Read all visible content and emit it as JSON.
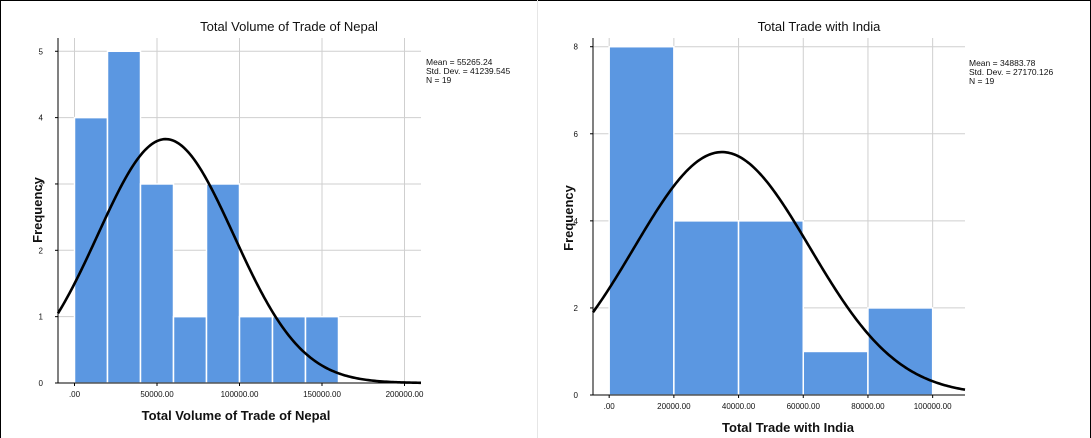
{
  "chart_data": [
    {
      "type": "bar",
      "subtype": "histogram",
      "title": "Total Volume of Trade of Nepal",
      "xlabel": "Total Volume of Trade of Nepal",
      "ylabel": "Frequency",
      "bin_width": 20000,
      "bins": [
        0,
        20000,
        40000,
        60000,
        80000,
        100000,
        120000,
        140000
      ],
      "values": [
        4,
        5,
        3,
        1,
        3,
        1,
        1,
        1
      ],
      "xlim": [
        -10000,
        210000
      ],
      "ylim": [
        0,
        5.2
      ],
      "x_ticks": [
        0,
        50000,
        100000,
        150000,
        200000
      ],
      "x_tick_labels": [
        ".00",
        "50000.00",
        "100000.00",
        "150000.00",
        "200000.00"
      ],
      "y_ticks": [
        0,
        1,
        2,
        3,
        4,
        5
      ],
      "y_tick_labels": [
        "0",
        "1",
        "2",
        "3",
        "4",
        "5"
      ],
      "normal_curve": {
        "mean": 55265.24,
        "sd": 41239.545,
        "n": 19
      },
      "stats_text": [
        "Mean = 55265.24",
        "Std. Dev. = 41239.545",
        "N = 19"
      ],
      "grid": true,
      "bar_color": "#5b97e1",
      "curve_color": "#000000"
    },
    {
      "type": "bar",
      "subtype": "histogram",
      "title": "Total Trade with India",
      "xlabel": "Total Trade with India",
      "ylabel": "Frequency",
      "bin_width": 20000,
      "bins": [
        0,
        20000,
        40000,
        60000,
        80000
      ],
      "values": [
        8,
        4,
        4,
        1,
        2
      ],
      "xlim": [
        -5000,
        110000
      ],
      "ylim": [
        0,
        8.2
      ],
      "x_ticks": [
        0,
        20000,
        40000,
        60000,
        80000,
        100000
      ],
      "x_tick_labels": [
        ".00",
        "20000.00",
        "40000.00",
        "60000.00",
        "80000.00",
        "100000.00"
      ],
      "y_ticks": [
        0,
        2,
        4,
        6,
        8
      ],
      "y_tick_labels": [
        "0",
        "2",
        "4",
        "6",
        "8"
      ],
      "normal_curve": {
        "mean": 34883.78,
        "sd": 27170.126,
        "n": 19
      },
      "stats_text": [
        "Mean = 34883.78",
        "Std. Dev. = 27170.126",
        "N = 19"
      ],
      "grid": true,
      "bar_color": "#5b97e1",
      "curve_color": "#000000"
    }
  ]
}
